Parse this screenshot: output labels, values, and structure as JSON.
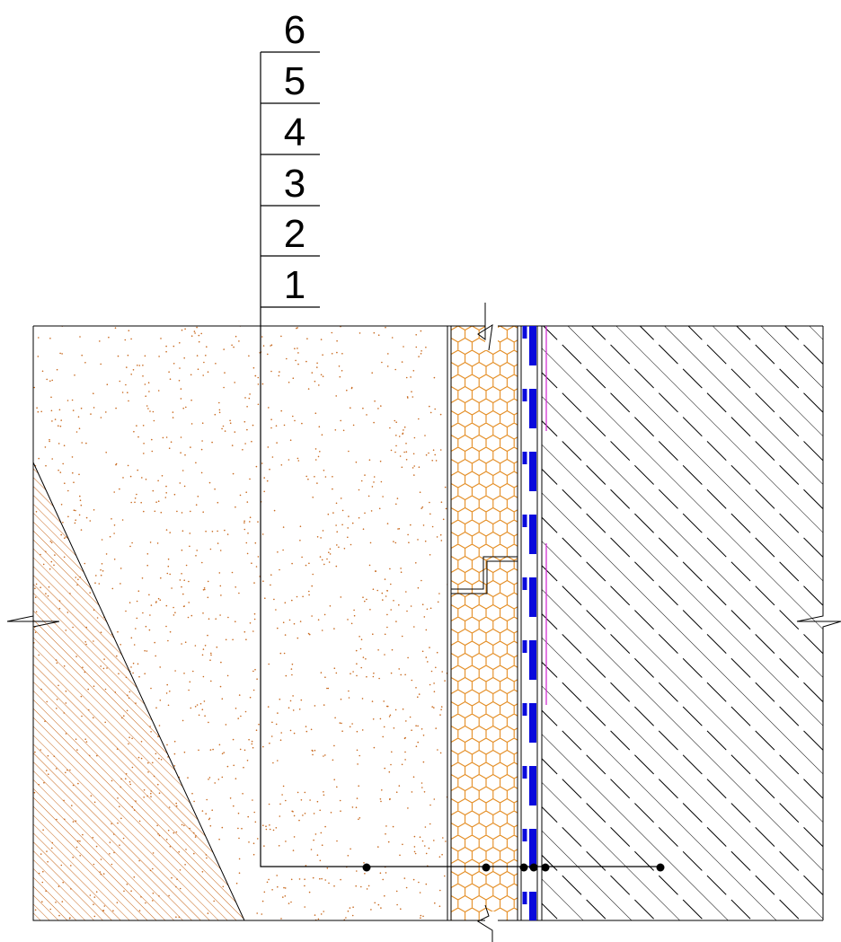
{
  "labels": [
    "6",
    "5",
    "4",
    "3",
    "2",
    "1"
  ]
}
